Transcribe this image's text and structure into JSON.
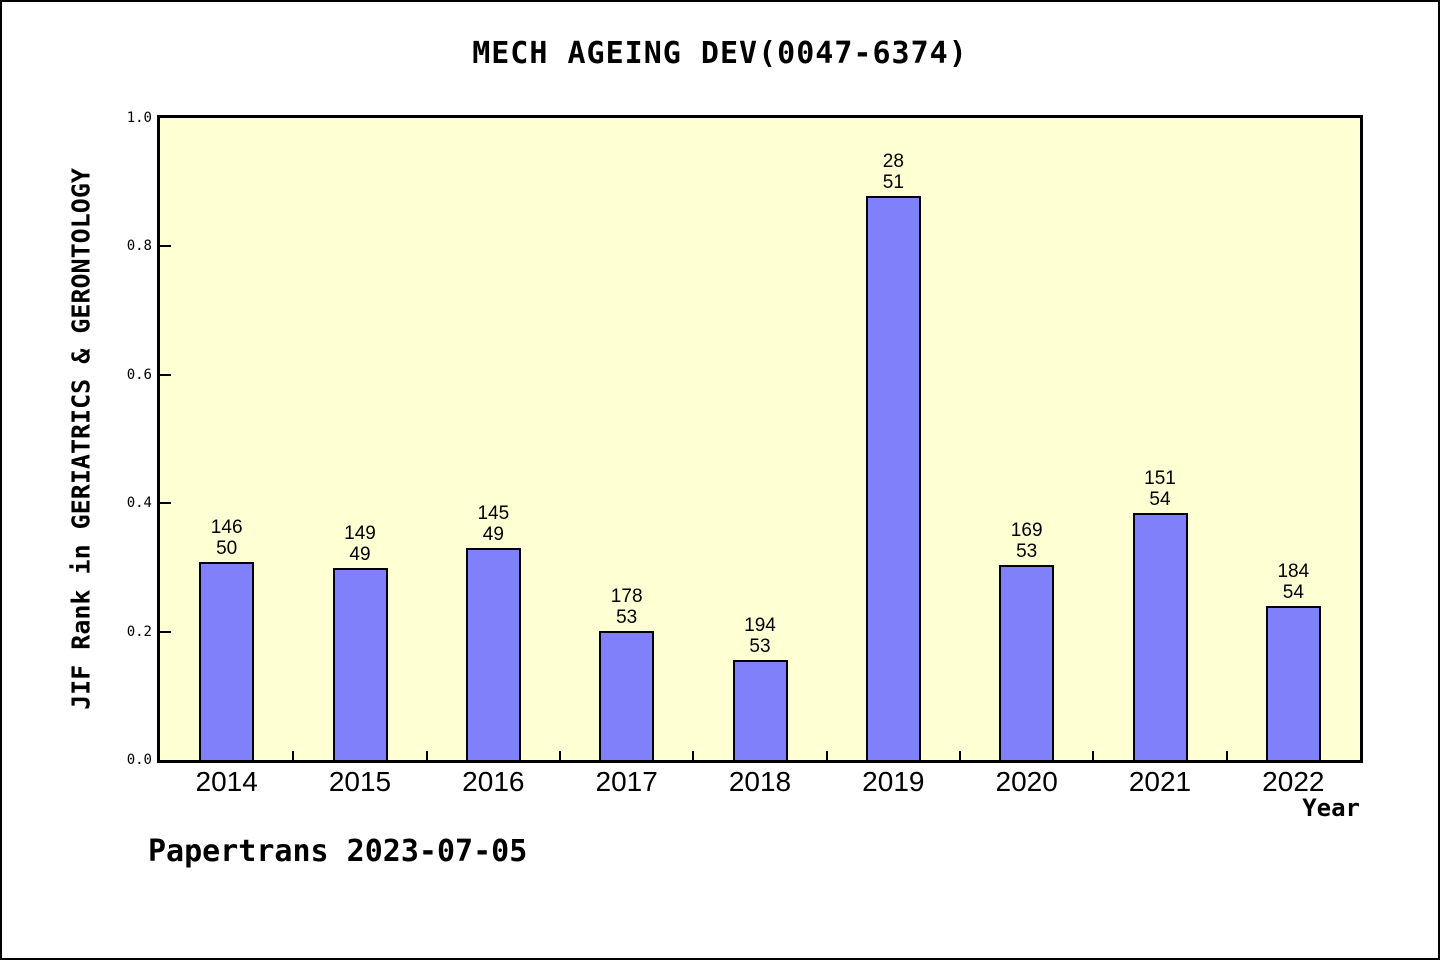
{
  "page": {
    "watermark": "Papertrans 2023-07-05"
  },
  "colors": {
    "plot_background": "#FFFFD4",
    "bar_fill": "#8080FA",
    "bar_border": "#000000",
    "axis": "#000000",
    "text": "#000000"
  },
  "chart_data": {
    "type": "bar",
    "title": "MECH AGEING DEV(0047-6374)",
    "xlabel": "Year",
    "ylabel": "JIF Rank in GERIATRICS & GERONTOLOGY",
    "ylim": [
      0.0,
      1.0
    ],
    "grid": false,
    "legend": false,
    "categories": [
      "2014",
      "2015",
      "2016",
      "2017",
      "2018",
      "2019",
      "2020",
      "2021",
      "2022"
    ],
    "values": [
      0.308,
      0.299,
      0.33,
      0.201,
      0.156,
      0.878,
      0.303,
      0.384,
      0.24
    ],
    "bar_labels": [
      [
        "146",
        "50"
      ],
      [
        "149",
        "49"
      ],
      [
        "145",
        "49"
      ],
      [
        "178",
        "53"
      ],
      [
        "194",
        "53"
      ],
      [
        "28",
        "51"
      ],
      [
        "169",
        "53"
      ],
      [
        "151",
        "54"
      ],
      [
        "184",
        "54"
      ]
    ],
    "ytick_values": [
      1.0,
      0.8,
      0.6,
      0.4,
      0.2,
      0.0
    ],
    "ytick_labels": [
      "1.0",
      "0.8",
      "0.6",
      "0.4",
      "0.2",
      "0.0"
    ]
  }
}
